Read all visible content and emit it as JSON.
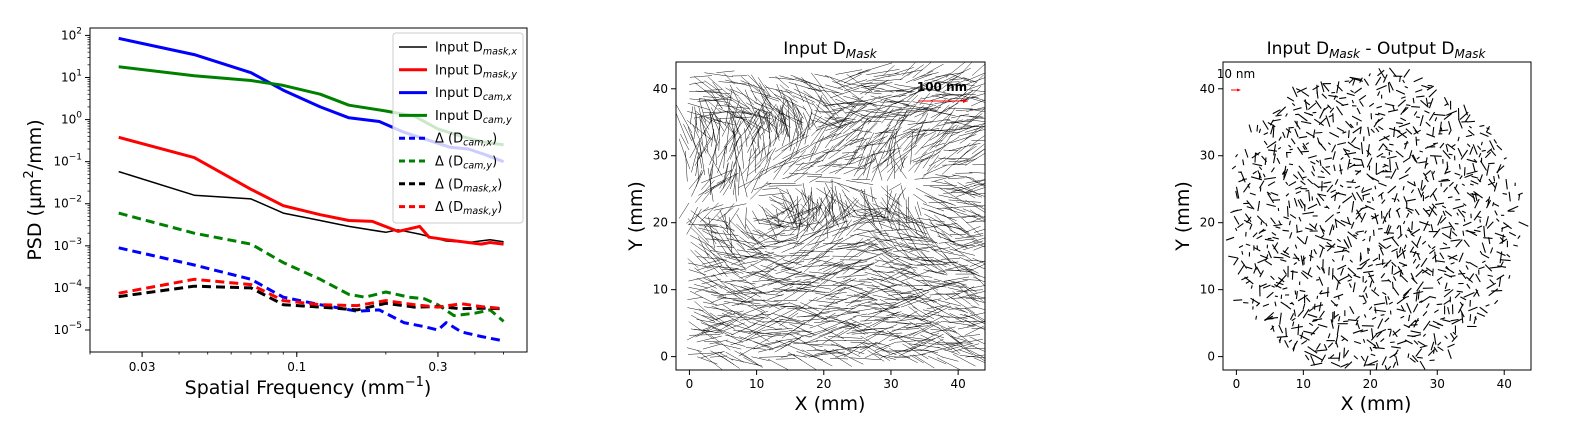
{
  "chart_data": [
    {
      "type": "line",
      "xlabel": "Spatial Frequency (mm",
      "xlabel_sup": "−1",
      "xlabel_end": ")",
      "ylabel": "PSD (µm",
      "ylabel_sup": "2",
      "ylabel_end": "/mm)",
      "xscale": "log",
      "yscale": "log",
      "xlim": [
        0.02,
        0.6
      ],
      "ylim": [
        3e-06,
        150
      ],
      "x_ticks": [
        0.03,
        0.1,
        0.3
      ],
      "x_tick_labels": [
        "0.03",
        "0.1",
        "0.3"
      ],
      "y_ticks": [
        1e-05,
        0.0001,
        0.001,
        0.01,
        0.1,
        1,
        10,
        100
      ],
      "y_tick_labels": [
        {
          "base": "10",
          "exp": "−5"
        },
        {
          "base": "10",
          "exp": "−4"
        },
        {
          "base": "10",
          "exp": "−3"
        },
        {
          "base": "10",
          "exp": "−2"
        },
        {
          "base": "10",
          "exp": "−1"
        },
        {
          "base": "10",
          "exp": "0"
        },
        {
          "base": "10",
          "exp": "1"
        },
        {
          "base": "10",
          "exp": "2"
        }
      ],
      "legend_position": "top-right",
      "series": [
        {
          "name": "Input D",
          "sub": "mask,x",
          "color": "#000000",
          "dash": "solid",
          "width": 1.5,
          "x": [
            0.025,
            0.045,
            0.07,
            0.09,
            0.12,
            0.15,
            0.2,
            0.22,
            0.26,
            0.32,
            0.38,
            0.45,
            0.5
          ],
          "y": [
            0.058,
            0.016,
            0.013,
            0.006,
            0.004,
            0.0029,
            0.0021,
            0.0024,
            0.0019,
            0.0013,
            0.0012,
            0.0014,
            0.00125
          ]
        },
        {
          "name": "Input D",
          "sub": "mask,y",
          "color": "#ff0000",
          "dash": "solid",
          "width": 3,
          "x": [
            0.025,
            0.045,
            0.07,
            0.09,
            0.12,
            0.15,
            0.18,
            0.22,
            0.26,
            0.28,
            0.32,
            0.38,
            0.42,
            0.45,
            0.5
          ],
          "y": [
            0.38,
            0.125,
            0.022,
            0.009,
            0.0055,
            0.004,
            0.0038,
            0.0022,
            0.0029,
            0.0016,
            0.0014,
            0.0012,
            0.0011,
            0.0012,
            0.0011
          ]
        },
        {
          "name": "Input D",
          "sub": "cam,x",
          "color": "#0000ff",
          "dash": "solid",
          "width": 3,
          "x": [
            0.025,
            0.045,
            0.07,
            0.09,
            0.12,
            0.15,
            0.19,
            0.23,
            0.28,
            0.33,
            0.38,
            0.43,
            0.5
          ],
          "y": [
            85,
            35,
            13,
            5,
            2,
            1.1,
            0.9,
            0.5,
            0.32,
            0.22,
            0.2,
            0.15,
            0.1
          ]
        },
        {
          "name": "Input D",
          "sub": "cam,y",
          "color": "#008000",
          "dash": "solid",
          "width": 3,
          "x": [
            0.025,
            0.045,
            0.07,
            0.09,
            0.12,
            0.15,
            0.2,
            0.25,
            0.3,
            0.36,
            0.42,
            0.5
          ],
          "y": [
            18,
            11,
            8.5,
            6.5,
            4,
            2.2,
            1.6,
            1.2,
            0.6,
            0.4,
            0.3,
            0.25
          ]
        },
        {
          "name": "Δ (D",
          "sub": "cam,x",
          "end": ")",
          "color": "#0000ff",
          "dash": "dashed",
          "width": 3,
          "x": [
            0.025,
            0.045,
            0.07,
            0.09,
            0.12,
            0.16,
            0.19,
            0.23,
            0.27,
            0.3,
            0.32,
            0.36,
            0.42,
            0.5
          ],
          "y": [
            0.0009,
            0.00035,
            0.00016,
            6e-05,
            4e-05,
            2.8e-05,
            3e-05,
            1.5e-05,
            1.2e-05,
            1e-05,
            1.5e-05,
            9e-06,
            7e-06,
            5.5e-06
          ]
        },
        {
          "name": "Δ (D",
          "sub": "cam,y",
          "end": ")",
          "color": "#008000",
          "dash": "dashed",
          "width": 3,
          "x": [
            0.025,
            0.045,
            0.07,
            0.09,
            0.12,
            0.15,
            0.17,
            0.2,
            0.24,
            0.27,
            0.3,
            0.34,
            0.4,
            0.45,
            0.5
          ],
          "y": [
            0.006,
            0.002,
            0.0011,
            0.0004,
            0.00016,
            7e-05,
            6e-05,
            8e-05,
            6e-05,
            5.5e-05,
            4e-05,
            2.2e-05,
            2.5e-05,
            3e-05,
            1.6e-05
          ]
        },
        {
          "name": "Δ (D",
          "sub": "mask,x",
          "end": ")",
          "color": "#000000",
          "dash": "dashed",
          "width": 3,
          "x": [
            0.025,
            0.045,
            0.07,
            0.09,
            0.12,
            0.16,
            0.2,
            0.25,
            0.3,
            0.36,
            0.42,
            0.5
          ],
          "y": [
            6.2e-05,
            0.00011,
            0.0001,
            4e-05,
            3.5e-05,
            3e-05,
            4.3e-05,
            3.5e-05,
            3.6e-05,
            3.2e-05,
            3.3e-05,
            3.2e-05
          ]
        },
        {
          "name": "Δ (D",
          "sub": "mask,y",
          "end": ")",
          "color": "#ff0000",
          "dash": "dashed",
          "width": 3,
          "x": [
            0.025,
            0.045,
            0.07,
            0.09,
            0.12,
            0.16,
            0.2,
            0.25,
            0.3,
            0.36,
            0.42,
            0.5
          ],
          "y": [
            7.5e-05,
            0.00016,
            0.00012,
            5e-05,
            4e-05,
            3.8e-05,
            5e-05,
            4e-05,
            3.5e-05,
            4.2e-05,
            3.6e-05,
            3.2e-05
          ]
        }
      ]
    },
    {
      "type": "quiver",
      "title": "Input D",
      "title_sub": "Mask",
      "xlabel": "X (mm)",
      "ylabel": "Y (mm)",
      "xlim": [
        -2,
        44
      ],
      "ylim": [
        -2,
        44
      ],
      "x_ticks": [
        0,
        10,
        20,
        30,
        40
      ],
      "y_ticks": [
        0,
        10,
        20,
        30,
        40
      ],
      "scale_label": "100 nm",
      "scale_color": "#ff0000",
      "vector_color": "#000000"
    },
    {
      "type": "quiver",
      "title": "Input D",
      "title_sub": "Mask",
      "title_mid": " - Output D",
      "title_sub2": "Mask",
      "xlabel": "X (mm)",
      "ylabel": "Y (mm)",
      "xlim": [
        -2,
        44
      ],
      "ylim": [
        -2,
        44
      ],
      "x_ticks": [
        0,
        10,
        20,
        30,
        40
      ],
      "y_ticks": [
        0,
        10,
        20,
        30,
        40
      ],
      "scale_label": "10 nm",
      "scale_color": "#ff0000",
      "vector_color": "#000000"
    }
  ]
}
